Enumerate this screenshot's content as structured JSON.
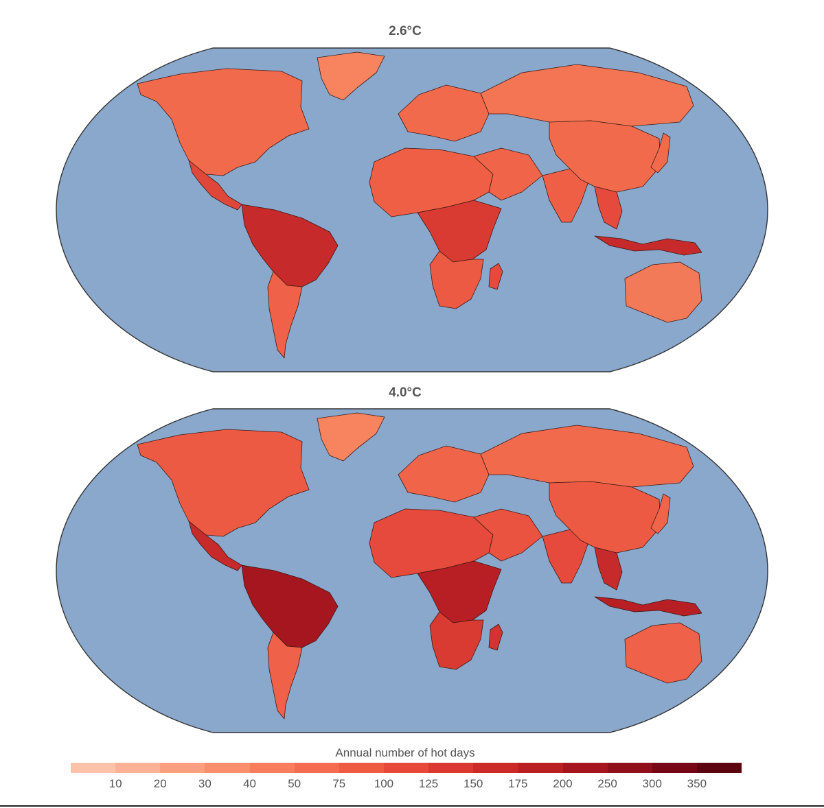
{
  "maps": [
    {
      "title": "2.6°C",
      "regions": {
        "north_america": "#f26a4c",
        "central_america": "#e0473b",
        "greenland": "#f7835f",
        "south_america_north": "#c62a2a",
        "south_america_south": "#ef6148",
        "africa_north": "#ef5f45",
        "africa_central": "#d93a32",
        "africa_south": "#ec5a44",
        "madagascar": "#e64a3c",
        "europe": "#f26a4c",
        "russia": "#f47553",
        "middle_east": "#f0654a",
        "india": "#ef5f45",
        "china": "#f26a4c",
        "southeast_asia": "#e64a3c",
        "indonesia": "#c62a2a",
        "australia": "#f37a58",
        "new_zealand": "#f47553",
        "japan": "#f26a4c"
      }
    },
    {
      "title": "4.0°C",
      "regions": {
        "north_america": "#ec5a44",
        "central_america": "#c62a2a",
        "greenland": "#f7835f",
        "south_america_north": "#a5161f",
        "south_america_south": "#ef6148",
        "africa_north": "#e64a3c",
        "africa_central": "#b71f25",
        "africa_south": "#d93a32",
        "madagascar": "#d2342f",
        "europe": "#f0654a",
        "russia": "#f26a4c",
        "middle_east": "#e9533f",
        "india": "#e64a3c",
        "china": "#ec5a44",
        "southeast_asia": "#c62a2a",
        "indonesia": "#b71f25",
        "australia": "#ef6148",
        "new_zealand": "#f26a4c",
        "japan": "#f0654a"
      }
    }
  ],
  "ocean_color": "#8aa7cc",
  "legend": {
    "title": "Annual number of  hot days",
    "ticks": [
      "10",
      "20",
      "30",
      "40",
      "50",
      "75",
      "100",
      "125",
      "150",
      "175",
      "200",
      "250",
      "300",
      "350"
    ],
    "colors": [
      "#fcc2aa",
      "#fbb195",
      "#fa9f80",
      "#f98e6c",
      "#f77d5c",
      "#f46b4f",
      "#ef5a43",
      "#e6493a",
      "#da3830",
      "#cc2a28",
      "#ba1f22",
      "#a6151d",
      "#8f0e18",
      "#770714",
      "#5c0510"
    ]
  }
}
